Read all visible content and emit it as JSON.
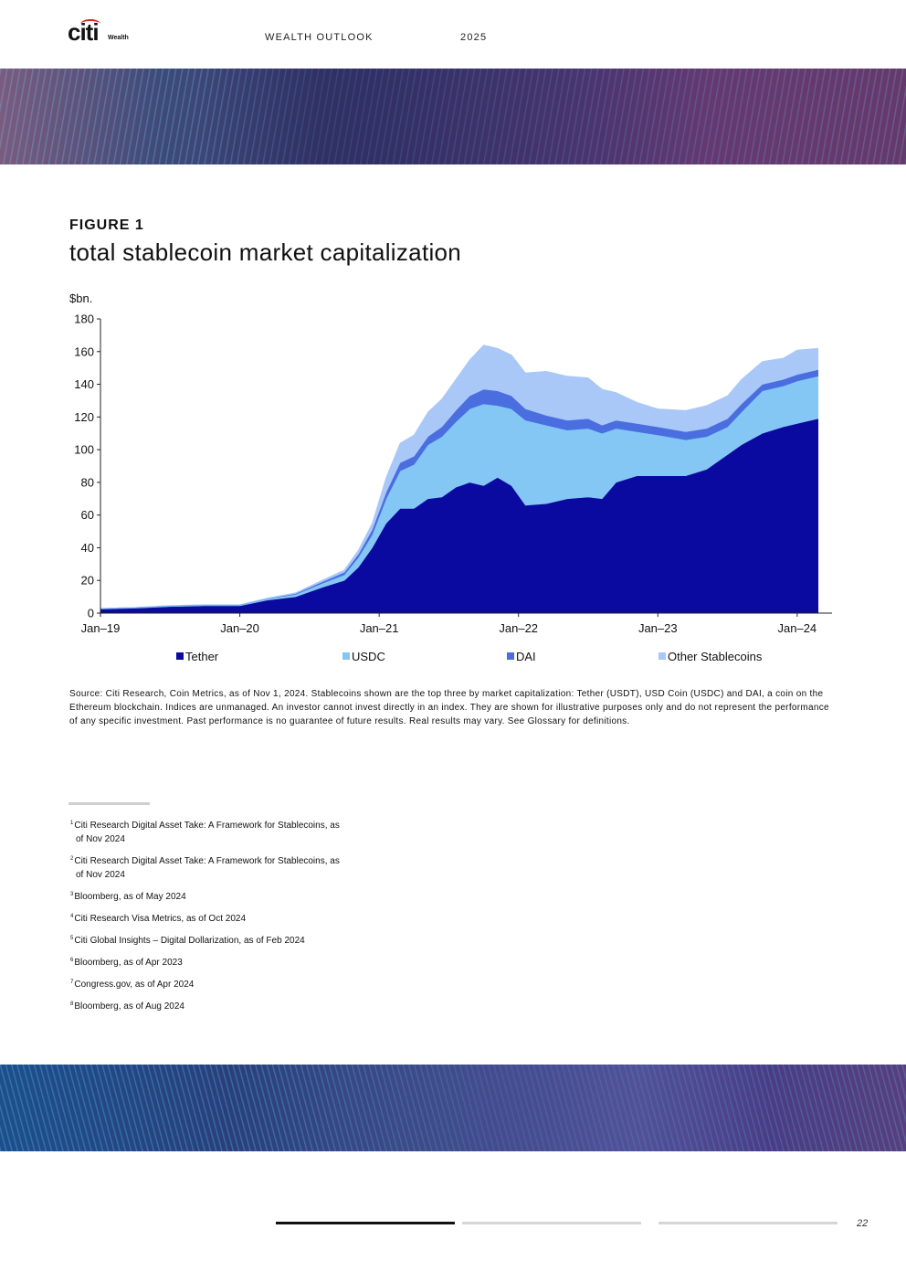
{
  "header": {
    "logo_text": "citi",
    "logo_sub": "Wealth",
    "publication": "WEALTH OUTLOOK",
    "year": "2025"
  },
  "figure": {
    "label": "FIGURE 1",
    "title": "total stablecoin market capitalization"
  },
  "chart_data": {
    "type": "area",
    "stacked": true,
    "ylabel": "$bn.",
    "ylim": [
      0,
      180
    ],
    "yticks": [
      0,
      20,
      40,
      60,
      80,
      100,
      120,
      140,
      160,
      180
    ],
    "xlim": [
      2019.0,
      2024.25
    ],
    "xticks": [
      {
        "label": "Jan–19",
        "x": 2019.0
      },
      {
        "label": "Jan–20",
        "x": 2020.0
      },
      {
        "label": "Jan–21",
        "x": 2021.0
      },
      {
        "label": "Jan–22",
        "x": 2022.0
      },
      {
        "label": "Jan–23",
        "x": 2023.0
      },
      {
        "label": "Jan–24",
        "x": 2024.0
      }
    ],
    "x": [
      2019.0,
      2019.25,
      2019.5,
      2019.75,
      2020.0,
      2020.2,
      2020.4,
      2020.6,
      2020.75,
      2020.85,
      2020.95,
      2021.05,
      2021.15,
      2021.25,
      2021.35,
      2021.45,
      2021.55,
      2021.65,
      2021.75,
      2021.85,
      2021.95,
      2022.05,
      2022.2,
      2022.35,
      2022.5,
      2022.6,
      2022.7,
      2022.85,
      2023.0,
      2023.2,
      2023.35,
      2023.5,
      2023.6,
      2023.75,
      2023.9,
      2024.0,
      2024.15
    ],
    "series": [
      {
        "name": "Tether",
        "color": "#0a0aa0",
        "values": [
          2.5,
          3,
          4,
          4.5,
          4.5,
          8,
          10,
          16,
          20,
          28,
          40,
          55,
          64,
          64,
          70,
          71,
          77,
          80,
          78,
          83,
          78,
          66,
          67,
          70,
          71,
          70,
          80,
          84,
          84,
          84,
          88,
          97,
          103,
          110,
          114,
          116,
          119
        ]
      },
      {
        "name": "USDC",
        "color": "#84c7f5",
        "values": [
          0.3,
          0.4,
          0.5,
          0.5,
          0.5,
          0.8,
          1.5,
          2.5,
          3.5,
          6,
          8,
          15,
          23,
          27,
          33,
          37,
          40,
          45,
          50,
          44,
          47,
          52,
          48,
          42,
          42,
          40,
          33,
          27,
          25,
          22,
          20,
          17,
          20,
          26,
          25,
          26,
          26
        ]
      },
      {
        "name": "DAI",
        "color": "#4a6ee0",
        "values": [
          0.1,
          0.1,
          0.1,
          0.1,
          0.1,
          0.2,
          0.5,
          1,
          1.5,
          2,
          3,
          4,
          5,
          5,
          5,
          6,
          7,
          8,
          9,
          9,
          8,
          7,
          6,
          6,
          6,
          5,
          5,
          5,
          5,
          5,
          5,
          5,
          5,
          4,
          4,
          4,
          4
        ]
      },
      {
        "name": "Other Stablecoins",
        "color": "#a9c8f7",
        "values": [
          0.1,
          0.1,
          0.1,
          0.1,
          0.1,
          0.3,
          0.5,
          1,
          1.5,
          2.5,
          4,
          9,
          12,
          13,
          15,
          17,
          19,
          22,
          27,
          26,
          25,
          22,
          27,
          27,
          25,
          22,
          17,
          13,
          11,
          13,
          14,
          14,
          15,
          14,
          13,
          15,
          13
        ]
      }
    ]
  },
  "source_text": "Source: Citi Research, Coin Metrics, as of Nov 1, 2024. Stablecoins shown are the top three by market capitalization: Tether (USDT), USD Coin (USDC) and DAI, a coin on the Ethereum blockchain. Indices are unmanaged. An investor cannot invest directly in an index. They are shown for illustrative purposes only and do not represent the performance of any specific investment. Past performance is no guarantee of future results. Real results may vary. See Glossary for definitions.",
  "footnotes": [
    {
      "num": "1",
      "text": "Citi Research Digital Asset Take: A Framework for Stablecoins, as of Nov 2024"
    },
    {
      "num": "2",
      "text": "Citi Research Digital Asset Take: A Framework for Stablecoins, as of Nov 2024"
    },
    {
      "num": "3",
      "text": "Bloomberg, as of May 2024"
    },
    {
      "num": "4",
      "text": "Citi Research Visa Metrics, as of Oct 2024"
    },
    {
      "num": "5",
      "text": "Citi Global Insights – Digital Dollarization, as of Feb 2024"
    },
    {
      "num": "6",
      "text": "Bloomberg, as of Apr 2023"
    },
    {
      "num": "7",
      "text": "Congress.gov, as of Apr 2024"
    },
    {
      "num": "8",
      "text": "Bloomberg, as of Aug 2024"
    }
  ],
  "page": {
    "number": "22",
    "progress_segments": 3,
    "active_segment": 1
  }
}
